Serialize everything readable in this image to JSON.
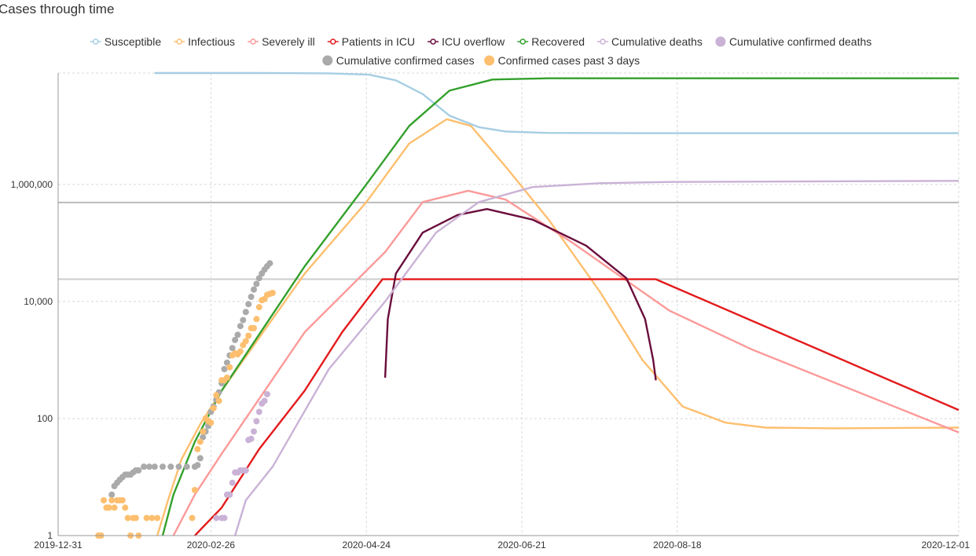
{
  "chart_data": {
    "type": "line",
    "title": "Cases through time",
    "yscale": "log",
    "grid": true,
    "legend_position": "top",
    "x_ticks": [
      "2019-12-31",
      "2020-02-26",
      "2020-04-24",
      "2020-06-21",
      "2020-08-18",
      "2020-12-01"
    ],
    "y_ticks": [
      {
        "value": 1,
        "label": "1"
      },
      {
        "value": 100,
        "label": "100"
      },
      {
        "value": 10000,
        "label": "10,000"
      },
      {
        "value": 1000000,
        "label": "1,000,000"
      }
    ],
    "xlim": [
      "2019-12-31",
      "2020-12-01"
    ],
    "ylim": [
      1,
      80000000
    ],
    "reference_lines": [
      {
        "value": 490000,
        "color": "#bbbbbb"
      },
      {
        "value": 24000,
        "color": "#cccccc"
      }
    ],
    "series": [
      {
        "name": "Susceptible",
        "kind": "line",
        "color": "#a6cee3",
        "points": [
          [
            "2020-02-05",
            80000000
          ],
          [
            "2020-03-15",
            80000000
          ],
          [
            "2020-04-10",
            79000000
          ],
          [
            "2020-04-25",
            75000000
          ],
          [
            "2020-05-05",
            60000000
          ],
          [
            "2020-05-15",
            35000000
          ],
          [
            "2020-05-25",
            15000000
          ],
          [
            "2020-06-05",
            9500000
          ],
          [
            "2020-06-15",
            8000000
          ],
          [
            "2020-06-30",
            7600000
          ],
          [
            "2020-08-01",
            7500000
          ],
          [
            "2020-12-01",
            7500000
          ]
        ]
      },
      {
        "name": "Infectious",
        "kind": "line",
        "color": "#fdbf6f",
        "points": [
          [
            "2020-02-06",
            1
          ],
          [
            "2020-02-10",
            4
          ],
          [
            "2020-02-15",
            20
          ],
          [
            "2020-02-22",
            80
          ],
          [
            "2020-03-01",
            300
          ],
          [
            "2020-04-01",
            30000
          ],
          [
            "2020-04-24",
            500000
          ],
          [
            "2020-05-10",
            5000000
          ],
          [
            "2020-05-24",
            13000000
          ],
          [
            "2020-06-02",
            10000000
          ],
          [
            "2020-06-15",
            2000000
          ],
          [
            "2020-07-01",
            250000
          ],
          [
            "2020-07-20",
            15000
          ],
          [
            "2020-08-05",
            1000
          ],
          [
            "2020-08-20",
            160
          ],
          [
            "2020-09-05",
            85
          ],
          [
            "2020-09-20",
            70
          ],
          [
            "2020-10-15",
            68
          ],
          [
            "2020-12-01",
            70
          ]
        ]
      },
      {
        "name": "Severely ill",
        "kind": "line",
        "color": "#fb9a99",
        "points": [
          [
            "2020-02-12",
            1
          ],
          [
            "2020-02-20",
            5
          ],
          [
            "2020-03-01",
            25
          ],
          [
            "2020-04-01",
            3000
          ],
          [
            "2020-05-01",
            70000
          ],
          [
            "2020-05-15",
            500000
          ],
          [
            "2020-06-01",
            780000
          ],
          [
            "2020-06-15",
            550000
          ],
          [
            "2020-07-10",
            100000
          ],
          [
            "2020-08-15",
            7000
          ],
          [
            "2020-09-15",
            1500
          ],
          [
            "2020-12-01",
            58
          ]
        ]
      },
      {
        "name": "Patients in ICU",
        "kind": "line",
        "color": "#e31a1c",
        "points": [
          [
            "2020-02-20",
            1
          ],
          [
            "2020-03-01",
            3
          ],
          [
            "2020-03-15",
            30
          ],
          [
            "2020-04-01",
            300
          ],
          [
            "2020-04-15",
            3000
          ],
          [
            "2020-04-30",
            24000
          ],
          [
            "2020-08-10",
            24000
          ],
          [
            "2020-12-01",
            140
          ]
        ]
      },
      {
        "name": "ICU overflow",
        "kind": "line",
        "color": "#6a0d3c",
        "points": [
          [
            "2020-05-01",
            500
          ],
          [
            "2020-05-02",
            5000
          ],
          [
            "2020-05-05",
            30000
          ],
          [
            "2020-05-15",
            150000
          ],
          [
            "2020-05-28",
            300000
          ],
          [
            "2020-06-08",
            380000
          ],
          [
            "2020-06-25",
            250000
          ],
          [
            "2020-07-15",
            90000
          ],
          [
            "2020-07-30",
            25000
          ],
          [
            "2020-08-06",
            5000
          ],
          [
            "2020-08-09",
            1000
          ],
          [
            "2020-08-10",
            450
          ]
        ]
      },
      {
        "name": "Recovered",
        "kind": "line",
        "color": "#33a02c",
        "points": [
          [
            "2020-02-08",
            1
          ],
          [
            "2020-02-12",
            5
          ],
          [
            "2020-02-20",
            40
          ],
          [
            "2020-03-01",
            300
          ],
          [
            "2020-04-01",
            40000
          ],
          [
            "2020-04-24",
            1000000
          ],
          [
            "2020-05-10",
            10000000
          ],
          [
            "2020-05-25",
            40000000
          ],
          [
            "2020-06-10",
            62000000
          ],
          [
            "2020-07-01",
            65000000
          ],
          [
            "2020-12-01",
            65000000
          ]
        ]
      },
      {
        "name": "Cumulative deaths",
        "kind": "line",
        "color": "#cab2d6",
        "points": [
          [
            "2020-03-06",
            1
          ],
          [
            "2020-03-10",
            4
          ],
          [
            "2020-03-20",
            15
          ],
          [
            "2020-04-10",
            700
          ],
          [
            "2020-05-01",
            10000
          ],
          [
            "2020-05-20",
            150000
          ],
          [
            "2020-06-05",
            500000
          ],
          [
            "2020-06-25",
            900000
          ],
          [
            "2020-07-20",
            1050000
          ],
          [
            "2020-08-15",
            1100000
          ],
          [
            "2020-12-01",
            1150000
          ]
        ]
      },
      {
        "name": "Cumulative confirmed deaths",
        "kind": "scatter",
        "color": "#cab2d6",
        "points": [
          [
            "2020-02-28",
            2
          ],
          [
            "2020-03-01",
            2
          ],
          [
            "2020-03-02",
            2
          ],
          [
            "2020-03-03",
            5
          ],
          [
            "2020-03-04",
            5
          ],
          [
            "2020-03-05",
            8
          ],
          [
            "2020-03-06",
            12
          ],
          [
            "2020-03-07",
            12
          ],
          [
            "2020-03-08",
            13
          ],
          [
            "2020-03-09",
            13
          ],
          [
            "2020-03-10",
            13
          ],
          [
            "2020-03-11",
            43
          ],
          [
            "2020-03-12",
            45
          ],
          [
            "2020-03-13",
            60
          ],
          [
            "2020-03-14",
            90
          ],
          [
            "2020-03-15",
            130
          ],
          [
            "2020-03-16",
            180
          ],
          [
            "2020-03-17",
            200
          ],
          [
            "2020-03-18",
            260
          ]
        ]
      },
      {
        "name": "Cumulative confirmed cases",
        "kind": "scatter",
        "color": "#aaaaaa",
        "points": [
          [
            "2020-01-20",
            5
          ],
          [
            "2020-01-21",
            7
          ],
          [
            "2020-01-22",
            8
          ],
          [
            "2020-01-23",
            9
          ],
          [
            "2020-01-24",
            10
          ],
          [
            "2020-01-25",
            11
          ],
          [
            "2020-01-26",
            11
          ],
          [
            "2020-01-27",
            11
          ],
          [
            "2020-01-28",
            12
          ],
          [
            "2020-01-29",
            13
          ],
          [
            "2020-01-30",
            13
          ],
          [
            "2020-02-01",
            15
          ],
          [
            "2020-02-03",
            15
          ],
          [
            "2020-02-05",
            15
          ],
          [
            "2020-02-08",
            15
          ],
          [
            "2020-02-11",
            15
          ],
          [
            "2020-02-14",
            15
          ],
          [
            "2020-02-17",
            15
          ],
          [
            "2020-02-20",
            15
          ],
          [
            "2020-02-21",
            16
          ],
          [
            "2020-02-22",
            21
          ],
          [
            "2020-02-23",
            48
          ],
          [
            "2020-02-24",
            60
          ],
          [
            "2020-02-25",
            75
          ],
          [
            "2020-02-26",
            130
          ],
          [
            "2020-02-27",
            160
          ],
          [
            "2020-02-28",
            210
          ],
          [
            "2020-02-29",
            280
          ],
          [
            "2020-03-01",
            400
          ],
          [
            "2020-03-02",
            700
          ],
          [
            "2020-03-03",
            900
          ],
          [
            "2020-03-04",
            1200
          ],
          [
            "2020-03-05",
            1600
          ],
          [
            "2020-03-06",
            2200
          ],
          [
            "2020-03-07",
            2700
          ],
          [
            "2020-03-08",
            3800
          ],
          [
            "2020-03-09",
            4800
          ],
          [
            "2020-03-10",
            6600
          ],
          [
            "2020-03-11",
            9000
          ],
          [
            "2020-03-12",
            12000
          ],
          [
            "2020-03-13",
            16000
          ],
          [
            "2020-03-14",
            20000
          ],
          [
            "2020-03-15",
            25000
          ],
          [
            "2020-03-16",
            30000
          ],
          [
            "2020-03-17",
            35000
          ],
          [
            "2020-03-18",
            40000
          ],
          [
            "2020-03-19",
            45000
          ]
        ]
      },
      {
        "name": "Confirmed cases past 3 days",
        "kind": "scatter",
        "color": "#fdbf6f",
        "points": [
          [
            "2020-01-15",
            1
          ],
          [
            "2020-01-16",
            1
          ],
          [
            "2020-01-17",
            4
          ],
          [
            "2020-01-18",
            3
          ],
          [
            "2020-01-19",
            3
          ],
          [
            "2020-01-20",
            4
          ],
          [
            "2020-01-21",
            3
          ],
          [
            "2020-01-22",
            4
          ],
          [
            "2020-01-23",
            4
          ],
          [
            "2020-01-24",
            4
          ],
          [
            "2020-01-25",
            3
          ],
          [
            "2020-01-26",
            2
          ],
          [
            "2020-01-27",
            1
          ],
          [
            "2020-01-28",
            2
          ],
          [
            "2020-01-29",
            2
          ],
          [
            "2020-01-30",
            1
          ],
          [
            "2020-02-02",
            2
          ],
          [
            "2020-02-04",
            2
          ],
          [
            "2020-02-06",
            2
          ],
          [
            "2020-02-19",
            2
          ],
          [
            "2020-02-20",
            6
          ],
          [
            "2020-02-21",
            30
          ],
          [
            "2020-02-22",
            40
          ],
          [
            "2020-02-23",
            60
          ],
          [
            "2020-02-24",
            100
          ],
          [
            "2020-02-25",
            90
          ],
          [
            "2020-02-26",
            85
          ],
          [
            "2020-02-27",
            150
          ],
          [
            "2020-02-28",
            250
          ],
          [
            "2020-02-29",
            200
          ],
          [
            "2020-03-01",
            450
          ],
          [
            "2020-03-02",
            450
          ],
          [
            "2020-03-03",
            500
          ],
          [
            "2020-03-04",
            750
          ],
          [
            "2020-03-05",
            1200
          ],
          [
            "2020-03-06",
            1300
          ],
          [
            "2020-03-07",
            1250
          ],
          [
            "2020-03-08",
            1400
          ],
          [
            "2020-03-09",
            1800
          ],
          [
            "2020-03-10",
            2100
          ],
          [
            "2020-03-11",
            2600
          ],
          [
            "2020-03-12",
            3500
          ],
          [
            "2020-03-13",
            3500
          ],
          [
            "2020-03-14",
            5000
          ],
          [
            "2020-03-15",
            8000
          ],
          [
            "2020-03-16",
            10500
          ],
          [
            "2020-03-17",
            11000
          ],
          [
            "2020-03-18",
            13000
          ],
          [
            "2020-03-19",
            13500
          ],
          [
            "2020-03-20",
            14000
          ]
        ]
      }
    ]
  }
}
